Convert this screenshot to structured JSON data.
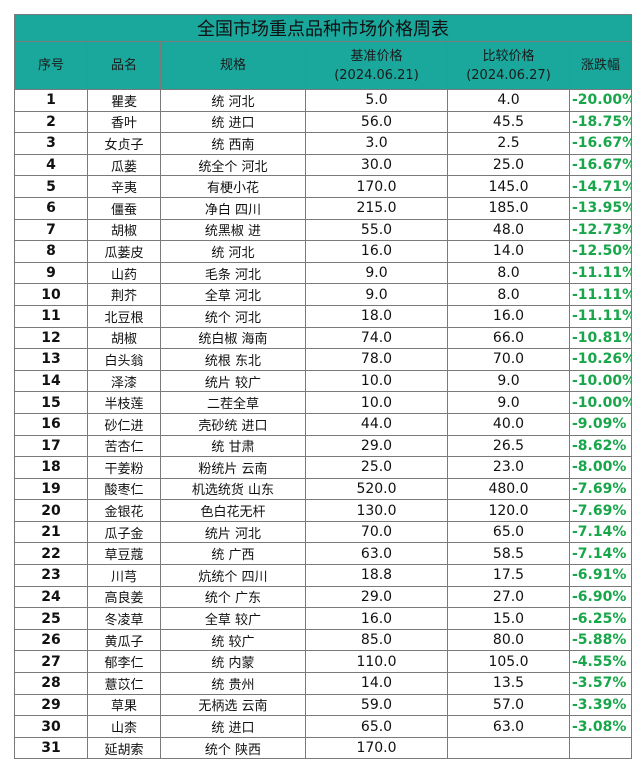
{
  "title": "全国市场重点品种市场价格周表",
  "headers": {
    "index": "序号",
    "name": "品名",
    "spec": "规格",
    "base_price": "基准价格",
    "base_date": "(2024.06.21)",
    "compare_price": "比较价格",
    "compare_date": "(2024.06.27)",
    "change": "涨跌幅"
  },
  "rows": [
    {
      "index": "1",
      "name": "瞿麦",
      "spec": "统 河北",
      "base": "5.0",
      "compare": "4.0",
      "change": "-20.00%"
    },
    {
      "index": "2",
      "name": "香叶",
      "spec": "统 进口",
      "base": "56.0",
      "compare": "45.5",
      "change": "-18.75%"
    },
    {
      "index": "3",
      "name": "女贞子",
      "spec": "统 西南",
      "base": "3.0",
      "compare": "2.5",
      "change": "-16.67%"
    },
    {
      "index": "4",
      "name": "瓜蒌",
      "spec": "统全个 河北",
      "base": "30.0",
      "compare": "25.0",
      "change": "-16.67%"
    },
    {
      "index": "5",
      "name": "辛夷",
      "spec": "有梗小花",
      "base": "170.0",
      "compare": "145.0",
      "change": "-14.71%"
    },
    {
      "index": "6",
      "name": "僵蚕",
      "spec": "净白 四川",
      "base": "215.0",
      "compare": "185.0",
      "change": "-13.95%"
    },
    {
      "index": "7",
      "name": "胡椒",
      "spec": "统黑椒 进",
      "base": "55.0",
      "compare": "48.0",
      "change": "-12.73%"
    },
    {
      "index": "8",
      "name": "瓜蒌皮",
      "spec": "统 河北",
      "base": "16.0",
      "compare": "14.0",
      "change": "-12.50%"
    },
    {
      "index": "9",
      "name": "山药",
      "spec": "毛条 河北",
      "base": "9.0",
      "compare": "8.0",
      "change": "-11.11%"
    },
    {
      "index": "10",
      "name": "荆芥",
      "spec": "全草 河北",
      "base": "9.0",
      "compare": "8.0",
      "change": "-11.11%"
    },
    {
      "index": "11",
      "name": "北豆根",
      "spec": "统个 河北",
      "base": "18.0",
      "compare": "16.0",
      "change": "-11.11%"
    },
    {
      "index": "12",
      "name": "胡椒",
      "spec": "统白椒 海南",
      "base": "74.0",
      "compare": "66.0",
      "change": "-10.81%"
    },
    {
      "index": "13",
      "name": "白头翁",
      "spec": "统根 东北",
      "base": "78.0",
      "compare": "70.0",
      "change": "-10.26%"
    },
    {
      "index": "14",
      "name": "泽漆",
      "spec": "统片 较广",
      "base": "10.0",
      "compare": "9.0",
      "change": "-10.00%"
    },
    {
      "index": "15",
      "name": "半枝莲",
      "spec": "二茬全草",
      "base": "10.0",
      "compare": "9.0",
      "change": "-10.00%"
    },
    {
      "index": "16",
      "name": "砂仁进",
      "spec": "壳砂统 进口",
      "base": "44.0",
      "compare": "40.0",
      "change": "-9.09%"
    },
    {
      "index": "17",
      "name": "苦杏仁",
      "spec": "统 甘肃",
      "base": "29.0",
      "compare": "26.5",
      "change": "-8.62%"
    },
    {
      "index": "18",
      "name": "干姜粉",
      "spec": "粉统片 云南",
      "base": "25.0",
      "compare": "23.0",
      "change": "-8.00%"
    },
    {
      "index": "19",
      "name": "酸枣仁",
      "spec": "机选统货 山东",
      "base": "520.0",
      "compare": "480.0",
      "change": "-7.69%"
    },
    {
      "index": "20",
      "name": "金银花",
      "spec": "色白花无杆",
      "base": "130.0",
      "compare": "120.0",
      "change": "-7.69%"
    },
    {
      "index": "21",
      "name": "瓜子金",
      "spec": "统片 河北",
      "base": "70.0",
      "compare": "65.0",
      "change": "-7.14%"
    },
    {
      "index": "22",
      "name": "草豆蔻",
      "spec": "统 广西",
      "base": "63.0",
      "compare": "58.5",
      "change": "-7.14%"
    },
    {
      "index": "23",
      "name": "川芎",
      "spec": "炕统个 四川",
      "base": "18.8",
      "compare": "17.5",
      "change": "-6.91%"
    },
    {
      "index": "24",
      "name": "高良姜",
      "spec": "统个 广东",
      "base": "29.0",
      "compare": "27.0",
      "change": "-6.90%"
    },
    {
      "index": "25",
      "name": "冬凌草",
      "spec": "全草 较广",
      "base": "16.0",
      "compare": "15.0",
      "change": "-6.25%"
    },
    {
      "index": "26",
      "name": "黄瓜子",
      "spec": "统 较广",
      "base": "85.0",
      "compare": "80.0",
      "change": "-5.88%"
    },
    {
      "index": "27",
      "name": "郁李仁",
      "spec": "统 内蒙",
      "base": "110.0",
      "compare": "105.0",
      "change": "-4.55%"
    },
    {
      "index": "28",
      "name": "薏苡仁",
      "spec": "统 贵州",
      "base": "14.0",
      "compare": "13.5",
      "change": "-3.57%"
    },
    {
      "index": "29",
      "name": "草果",
      "spec": "无柄选 云南",
      "base": "59.0",
      "compare": "57.0",
      "change": "-3.39%"
    },
    {
      "index": "30",
      "name": "山柰",
      "spec": "统 进口",
      "base": "65.0",
      "compare": "63.0",
      "change": "-3.08%"
    },
    {
      "index": "31",
      "name": "延胡索",
      "spec": "统个 陕西",
      "base": "170.0",
      "compare": "",
      "change": ""
    }
  ],
  "colors": {
    "header_bg": "#1aa79c",
    "negative_change": "#18a64a"
  }
}
